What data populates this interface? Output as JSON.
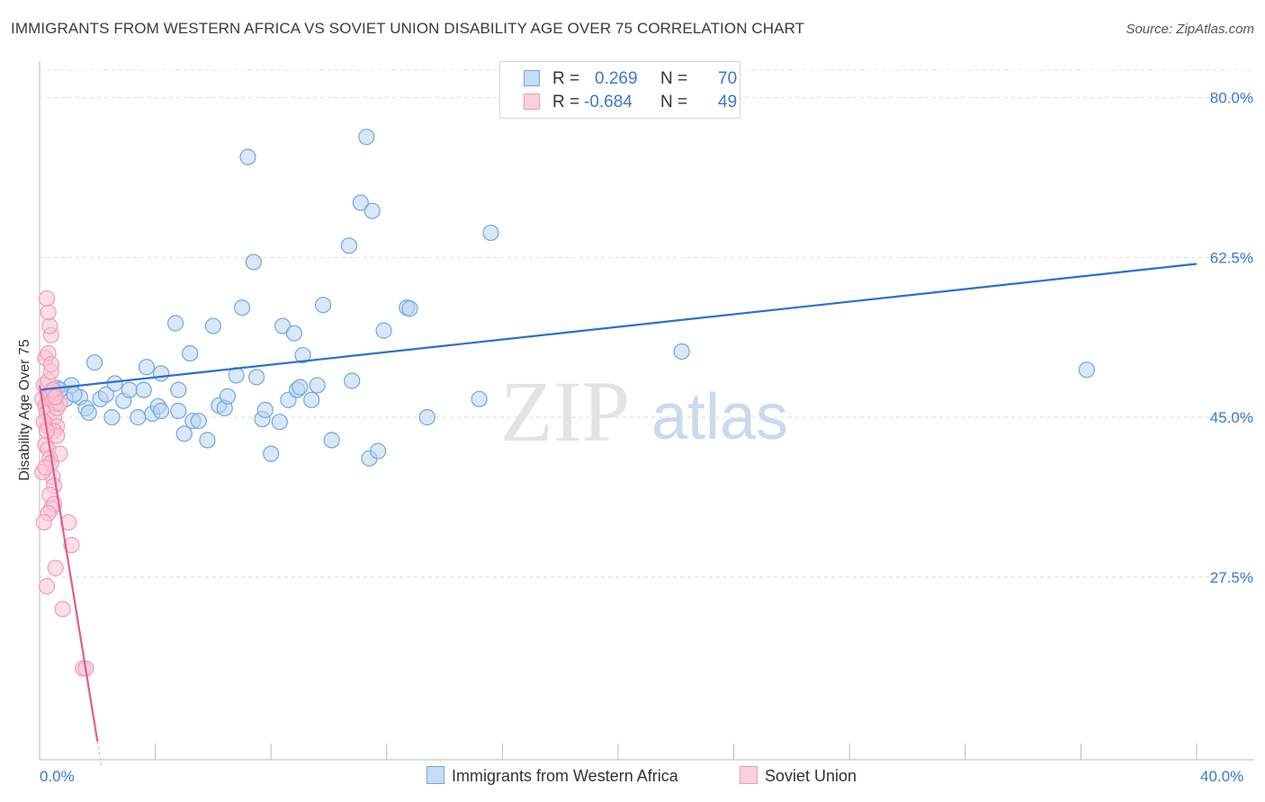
{
  "title": "IMMIGRANTS FROM WESTERN AFRICA VS SOVIET UNION DISABILITY AGE OVER 75 CORRELATION CHART",
  "source": "Source: ZipAtlas.com",
  "watermark": {
    "zip": "ZIP",
    "atlas": "atlas"
  },
  "legend_top": [
    {
      "r_label": "R =",
      "r_value": "0.269",
      "n_label": "N =",
      "n_value": "70",
      "color": "#6fa8e0"
    },
    {
      "r_label": "R =",
      "r_value": "-0.684",
      "n_label": "N =",
      "n_value": "49",
      "color": "#f29bb6"
    }
  ],
  "legend_bottom": [
    {
      "label": "Immigrants from Western Africa"
    },
    {
      "label": "Soviet Union"
    }
  ],
  "chart_data": {
    "type": "scatter",
    "xlabel": "",
    "ylabel": "Disability Age Over 75",
    "xlim": [
      0,
      40
    ],
    "ylim": [
      7.5,
      84
    ],
    "x_tick_labels": [
      "0.0%",
      "40.0%"
    ],
    "y_ticks": [
      27.5,
      45.0,
      62.5,
      80.0
    ],
    "y_tick_labels": [
      "27.5%",
      "45.0%",
      "62.5%",
      "80.0%"
    ],
    "grid": true,
    "series": [
      {
        "name": "Immigrants from Western Africa",
        "color": "#6fa8e0",
        "trend": {
          "x": [
            0.0,
            40.0
          ],
          "y": [
            48.0,
            61.8
          ]
        },
        "points": [
          [
            0.4,
            47.6
          ],
          [
            0.6,
            48.2
          ],
          [
            0.5,
            47.2
          ],
          [
            0.9,
            47.0
          ],
          [
            1.1,
            48.5
          ],
          [
            0.7,
            48.0
          ],
          [
            1.4,
            47.2
          ],
          [
            1.6,
            46.0
          ],
          [
            1.7,
            45.5
          ],
          [
            1.9,
            51.0
          ],
          [
            2.1,
            47.0
          ],
          [
            2.3,
            47.5
          ],
          [
            2.5,
            45.0
          ],
          [
            2.6,
            48.7
          ],
          [
            2.9,
            46.8
          ],
          [
            3.1,
            48.0
          ],
          [
            3.4,
            45.0
          ],
          [
            3.6,
            48.0
          ],
          [
            3.7,
            50.5
          ],
          [
            3.9,
            45.4
          ],
          [
            4.1,
            46.2
          ],
          [
            4.2,
            45.7
          ],
          [
            4.2,
            49.8
          ],
          [
            4.7,
            55.3
          ],
          [
            4.8,
            45.7
          ],
          [
            5.0,
            43.2
          ],
          [
            5.2,
            52.0
          ],
          [
            5.3,
            44.6
          ],
          [
            5.5,
            44.6
          ],
          [
            5.8,
            42.5
          ],
          [
            6.0,
            55.0
          ],
          [
            6.2,
            46.3
          ],
          [
            6.4,
            46.0
          ],
          [
            6.5,
            47.3
          ],
          [
            6.8,
            49.6
          ],
          [
            7.0,
            57.0
          ],
          [
            7.2,
            73.5
          ],
          [
            7.4,
            62.0
          ],
          [
            7.5,
            49.4
          ],
          [
            7.7,
            44.8
          ],
          [
            7.8,
            45.8
          ],
          [
            8.0,
            41.0
          ],
          [
            8.3,
            44.5
          ],
          [
            8.4,
            55.0
          ],
          [
            8.6,
            46.9
          ],
          [
            8.8,
            54.2
          ],
          [
            8.9,
            48.0
          ],
          [
            9.1,
            51.8
          ],
          [
            9.4,
            46.9
          ],
          [
            9.6,
            48.5
          ],
          [
            9.8,
            57.3
          ],
          [
            10.1,
            42.5
          ],
          [
            10.7,
            63.8
          ],
          [
            10.8,
            49.0
          ],
          [
            11.1,
            68.5
          ],
          [
            11.3,
            75.7
          ],
          [
            11.4,
            40.5
          ],
          [
            11.7,
            41.3
          ],
          [
            11.9,
            54.5
          ],
          [
            12.7,
            57.0
          ],
          [
            12.8,
            56.9
          ],
          [
            13.4,
            45.0
          ],
          [
            15.2,
            47.0
          ],
          [
            15.6,
            65.2
          ],
          [
            22.2,
            52.2
          ],
          [
            36.2,
            50.2
          ],
          [
            11.5,
            67.6
          ],
          [
            4.8,
            48.0
          ],
          [
            9.0,
            48.3
          ],
          [
            1.2,
            47.5
          ]
        ]
      },
      {
        "name": "Soviet Union",
        "color": "#f29bb6",
        "trend": {
          "x": [
            0.0,
            2.0
          ],
          "y": [
            48.5,
            9.5
          ]
        },
        "points": [
          [
            0.1,
            47.0
          ],
          [
            0.15,
            48.5
          ],
          [
            0.2,
            46.2
          ],
          [
            0.25,
            45.5
          ],
          [
            0.3,
            49.0
          ],
          [
            0.3,
            44.0
          ],
          [
            0.35,
            47.5
          ],
          [
            0.4,
            50.0
          ],
          [
            0.45,
            46.8
          ],
          [
            0.5,
            45.0
          ],
          [
            0.2,
            51.5
          ],
          [
            0.3,
            52.0
          ],
          [
            0.4,
            54.0
          ],
          [
            0.35,
            55.0
          ],
          [
            0.3,
            56.5
          ],
          [
            0.25,
            58.0
          ],
          [
            0.4,
            50.8
          ],
          [
            0.5,
            48.0
          ],
          [
            0.55,
            46.5
          ],
          [
            0.6,
            44.0
          ],
          [
            0.2,
            42.0
          ],
          [
            0.3,
            41.5
          ],
          [
            0.35,
            40.5
          ],
          [
            0.4,
            40.0
          ],
          [
            0.5,
            43.5
          ],
          [
            0.6,
            43.0
          ],
          [
            0.7,
            41.0
          ],
          [
            0.45,
            38.5
          ],
          [
            0.5,
            37.5
          ],
          [
            0.35,
            36.5
          ],
          [
            0.4,
            35.0
          ],
          [
            0.5,
            35.5
          ],
          [
            0.3,
            34.5
          ],
          [
            0.15,
            33.5
          ],
          [
            1.0,
            33.5
          ],
          [
            1.1,
            31.0
          ],
          [
            0.55,
            28.5
          ],
          [
            0.25,
            26.5
          ],
          [
            0.8,
            24.0
          ],
          [
            1.5,
            17.5
          ],
          [
            1.6,
            17.5
          ],
          [
            0.1,
            39.0
          ],
          [
            0.2,
            39.5
          ],
          [
            0.6,
            46.0
          ],
          [
            0.7,
            46.5
          ],
          [
            0.15,
            44.5
          ],
          [
            0.25,
            43.5
          ],
          [
            0.45,
            48.0
          ],
          [
            0.55,
            47.2
          ]
        ]
      }
    ]
  }
}
